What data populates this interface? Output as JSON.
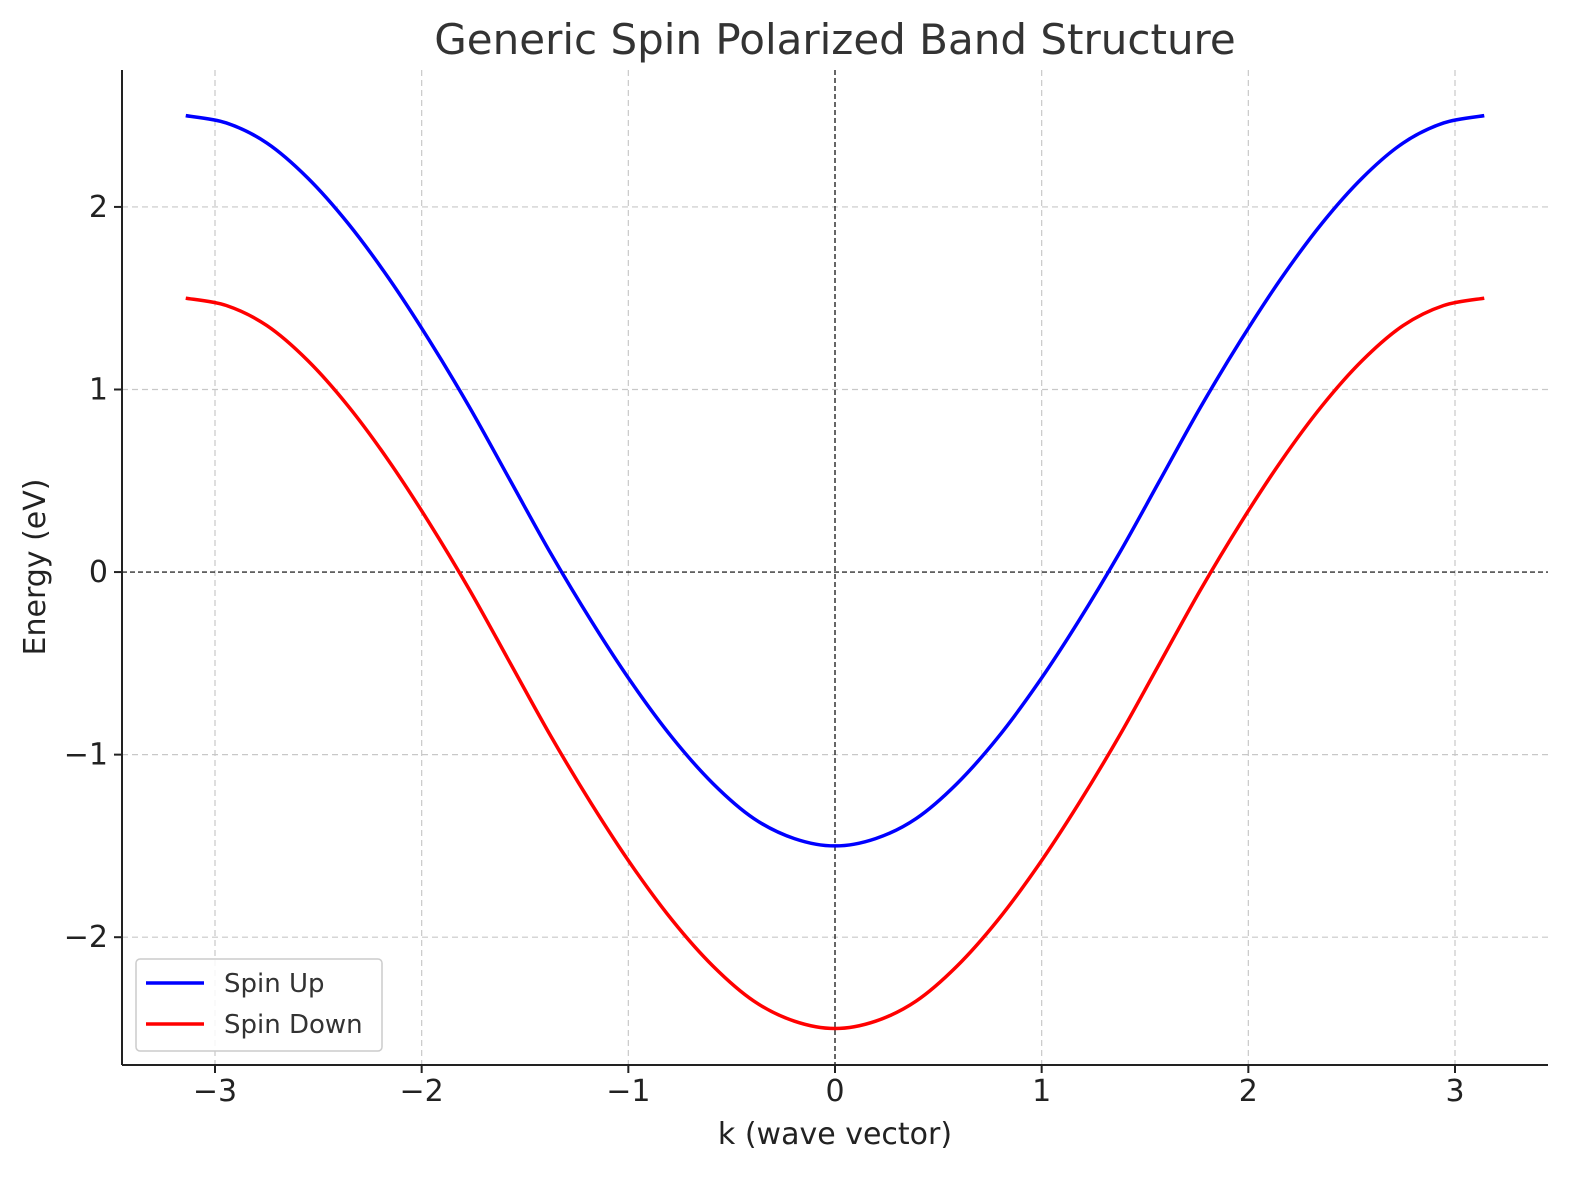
{
  "chart_data": {
    "type": "line",
    "title": "Generic Spin Polarized Band Structure",
    "xlabel": "k (wave vector)",
    "ylabel": "Energy (eV)",
    "xlim": [
      -3.45,
      3.45
    ],
    "ylim": [
      -2.7,
      2.75
    ],
    "xticks": [
      -3,
      -2,
      -1,
      0,
      1,
      2,
      3
    ],
    "xtick_labels": [
      "−3",
      "−2",
      "−1",
      "0",
      "1",
      "2",
      "3"
    ],
    "yticks": [
      -2,
      -1,
      0,
      1,
      2
    ],
    "ytick_labels": [
      "−2",
      "−1",
      "0",
      "1",
      "2"
    ],
    "grid": true,
    "reference_lines": {
      "horizontal": 0,
      "vertical": 0
    },
    "legend_position": "bottom-left",
    "x": [
      -3.1416,
      -2.9452,
      -2.7489,
      -2.5525,
      -2.3562,
      -2.1598,
      -1.9635,
      -1.7671,
      -1.5708,
      -1.3744,
      -1.1781,
      -0.9817,
      -0.7854,
      -0.589,
      -0.3927,
      -0.1963,
      0.0,
      0.1963,
      0.3927,
      0.589,
      0.7854,
      0.9817,
      1.1781,
      1.3744,
      1.5708,
      1.7671,
      1.9635,
      2.1598,
      2.3562,
      2.5525,
      2.7489,
      2.9452,
      3.1416
    ],
    "series": [
      {
        "name": "Spin Up",
        "color": "#0000ff",
        "values": [
          2.5,
          2.46,
          2.35,
          2.16,
          1.91,
          1.61,
          1.27,
          0.9,
          0.5,
          0.1,
          -0.27,
          -0.61,
          -0.91,
          -1.16,
          -1.35,
          -1.46,
          -1.5,
          -1.46,
          -1.35,
          -1.16,
          -0.91,
          -0.61,
          -0.27,
          0.1,
          0.5,
          0.9,
          1.27,
          1.61,
          1.91,
          2.16,
          2.35,
          2.46,
          2.5
        ]
      },
      {
        "name": "Spin Down",
        "color": "#ff0000",
        "values": [
          1.5,
          1.46,
          1.35,
          1.16,
          0.91,
          0.61,
          0.27,
          -0.1,
          -0.5,
          -0.9,
          -1.27,
          -1.61,
          -1.91,
          -2.16,
          -2.35,
          -2.46,
          -2.5,
          -2.46,
          -2.35,
          -2.16,
          -1.91,
          -1.61,
          -1.27,
          -0.9,
          -0.5,
          -0.1,
          0.27,
          0.61,
          0.91,
          1.16,
          1.35,
          1.46,
          1.5
        ]
      }
    ]
  }
}
